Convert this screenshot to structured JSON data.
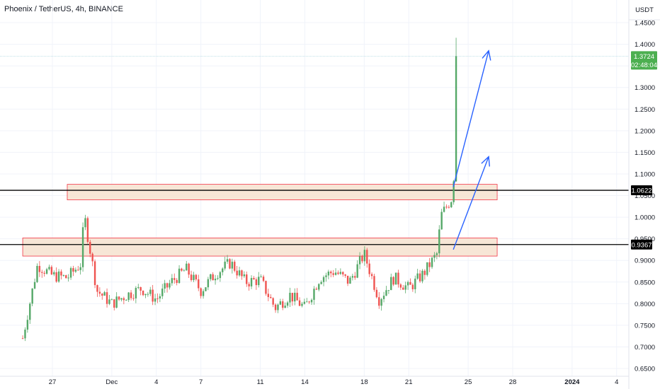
{
  "header": {
    "title": "Phoenix / TetherUS, 4h, BINANCE"
  },
  "axis": {
    "currency": "USDT"
  },
  "colors": {
    "up": "#26a69a",
    "up_fill": "#55a868",
    "down": "#ef5350",
    "zone_fill": "#f6e2cf",
    "zone_stroke": "#f23645",
    "arrow": "#2962ff",
    "last_price_bg": "#4caf50",
    "level_line": "#000000"
  },
  "chart_data": {
    "type": "candlestick",
    "ylim": [
      0.65,
      1.45
    ],
    "y_ticks": [
      "1.4500",
      "1.4000",
      "1.3500",
      "1.3000",
      "1.2500",
      "1.2000",
      "1.1500",
      "1.1000",
      "1.0500",
      "1.0000",
      "0.9500",
      "0.9000",
      "0.8500",
      "0.8000",
      "0.7500",
      "0.7000",
      "0.6500"
    ],
    "x_ticks": [
      {
        "label": "27",
        "date": "2023-11-27"
      },
      {
        "label": "Dec",
        "date": "2023-12-01"
      },
      {
        "label": "4",
        "date": "2023-12-04"
      },
      {
        "label": "7",
        "date": "2023-12-07"
      },
      {
        "label": "11",
        "date": "2023-12-11"
      },
      {
        "label": "14",
        "date": "2023-12-14"
      },
      {
        "label": "18",
        "date": "2023-12-18"
      },
      {
        "label": "21",
        "date": "2023-12-21"
      },
      {
        "label": "25",
        "date": "2023-12-25"
      },
      {
        "label": "28",
        "date": "2023-12-28"
      },
      {
        "label": "2024",
        "date": "2024-01-01",
        "bold": true
      },
      {
        "label": "4",
        "date": "2024-01-04"
      }
    ],
    "last_price": {
      "value": 1.3724,
      "label": "1.3724",
      "countdown": "02:48:04"
    },
    "levels": [
      {
        "value": 1.0622,
        "label": "1.0622"
      },
      {
        "value": 0.9367,
        "label": "0.9367"
      }
    ],
    "zones": [
      {
        "from": 1.04,
        "to": 1.076,
        "start": "2023-11-28",
        "end": "2023-12-26"
      },
      {
        "from": 0.91,
        "to": 0.952,
        "start": "2023-11-25",
        "end": "2023-12-26"
      }
    ],
    "arrows": [
      {
        "from": {
          "date": "2023-12-24",
          "value": 1.07
        },
        "to": {
          "date": "2023-12-26",
          "value": 1.385
        }
      },
      {
        "from": {
          "date": "2023-12-24",
          "value": 0.925
        },
        "to": {
          "date": "2023-12-26",
          "value": 1.14
        }
      }
    ],
    "anchors": [
      {
        "date": "2023-11-25",
        "value": 0.72
      },
      {
        "date": "2023-11-26",
        "value": 0.89
      },
      {
        "date": "2023-11-27",
        "value": 0.865
      },
      {
        "date": "2023-11-28",
        "value": 0.86
      },
      {
        "date": "2023-11-29",
        "value": 0.895
      },
      {
        "date": "2023-11-29",
        "value": 1.015
      },
      {
        "date": "2023-11-30",
        "value": 0.83
      },
      {
        "date": "2023-12-01",
        "value": 0.8
      },
      {
        "date": "2023-12-02",
        "value": 0.82
      },
      {
        "date": "2023-12-03",
        "value": 0.835
      },
      {
        "date": "2023-12-04",
        "value": 0.81
      },
      {
        "date": "2023-12-05",
        "value": 0.85
      },
      {
        "date": "2023-12-06",
        "value": 0.88
      },
      {
        "date": "2023-12-07",
        "value": 0.83
      },
      {
        "date": "2023-12-08",
        "value": 0.87
      },
      {
        "date": "2023-12-09",
        "value": 0.895
      },
      {
        "date": "2023-12-10",
        "value": 0.85
      },
      {
        "date": "2023-12-11",
        "value": 0.855
      },
      {
        "date": "2023-12-12",
        "value": 0.79
      },
      {
        "date": "2023-12-13",
        "value": 0.82
      },
      {
        "date": "2023-12-14",
        "value": 0.79
      },
      {
        "date": "2023-12-15",
        "value": 0.86
      },
      {
        "date": "2023-12-16",
        "value": 0.875
      },
      {
        "date": "2023-12-17",
        "value": 0.85
      },
      {
        "date": "2023-12-18",
        "value": 0.915
      },
      {
        "date": "2023-12-19",
        "value": 0.81
      },
      {
        "date": "2023-12-20",
        "value": 0.86
      },
      {
        "date": "2023-12-21",
        "value": 0.835
      },
      {
        "date": "2023-12-22",
        "value": 0.87
      },
      {
        "date": "2023-12-23",
        "value": 0.92
      },
      {
        "date": "2023-12-23",
        "value": 1.0
      },
      {
        "date": "2023-12-24",
        "value": 1.05
      },
      {
        "date": "2023-12-24",
        "value": 1.21
      },
      {
        "date": "2023-12-24",
        "value": 1.3724
      }
    ]
  }
}
